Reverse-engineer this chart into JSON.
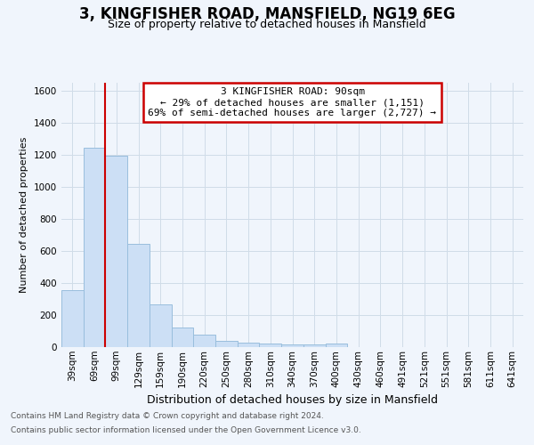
{
  "title": "3, KINGFISHER ROAD, MANSFIELD, NG19 6EG",
  "subtitle": "Size of property relative to detached houses in Mansfield",
  "xlabel": "Distribution of detached houses by size in Mansfield",
  "ylabel": "Number of detached properties",
  "footnote1": "Contains HM Land Registry data © Crown copyright and database right 2024.",
  "footnote2": "Contains public sector information licensed under the Open Government Licence v3.0.",
  "annotation_line1": "3 KINGFISHER ROAD: 90sqm",
  "annotation_line2": "← 29% of detached houses are smaller (1,151)",
  "annotation_line3": "69% of semi-detached houses are larger (2,727) →",
  "categories": [
    "39sqm",
    "69sqm",
    "99sqm",
    "129sqm",
    "159sqm",
    "190sqm",
    "220sqm",
    "250sqm",
    "280sqm",
    "310sqm",
    "340sqm",
    "370sqm",
    "400sqm",
    "430sqm",
    "460sqm",
    "491sqm",
    "521sqm",
    "551sqm",
    "581sqm",
    "611sqm",
    "641sqm"
  ],
  "values": [
    355,
    1240,
    1190,
    645,
    265,
    120,
    75,
    40,
    25,
    20,
    18,
    15,
    20,
    0,
    0,
    0,
    0,
    0,
    0,
    0,
    0
  ],
  "bar_color": "#ccdff5",
  "bar_edgecolor": "#99bedd",
  "vline_color": "#cc0000",
  "vline_x_data": 1.5,
  "ylim_max": 1650,
  "yticks": [
    0,
    200,
    400,
    600,
    800,
    1000,
    1200,
    1400,
    1600
  ],
  "annotation_box_edgecolor": "#cc0000",
  "grid_color": "#d0dce8",
  "background_color": "#f0f5fc",
  "title_fontsize": 12,
  "subtitle_fontsize": 9,
  "ylabel_fontsize": 8,
  "xlabel_fontsize": 9,
  "tick_fontsize": 7.5,
  "annotation_fontsize": 8,
  "footnote_fontsize": 6.5,
  "footnote_color": "#555555"
}
